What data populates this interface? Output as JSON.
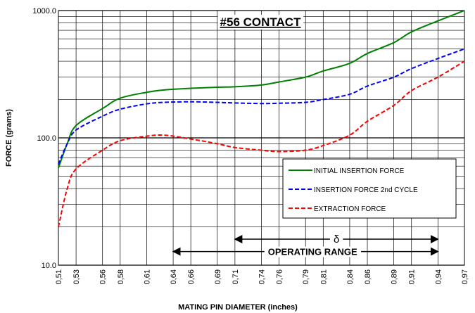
{
  "chart_data": {
    "type": "line",
    "title": "#56 CONTACT",
    "x_label": "MATING PIN  DIAMETER (inches)",
    "y_label": "FORCE (grams)",
    "log_y": true,
    "grid": true,
    "legend": "right",
    "xlim": [
      0.51,
      0.97
    ],
    "xticks": [
      {
        "value": 0.51,
        "label": "0,51"
      },
      {
        "value": 0.53,
        "label": "0,53"
      },
      {
        "value": 0.56,
        "label": "0,56"
      },
      {
        "value": 0.58,
        "label": "0,58"
      },
      {
        "value": 0.61,
        "label": "0,61"
      },
      {
        "value": 0.64,
        "label": "0,64"
      },
      {
        "value": 0.66,
        "label": "0,66"
      },
      {
        "value": 0.69,
        "label": "0,69"
      },
      {
        "value": 0.71,
        "label": "0,71"
      },
      {
        "value": 0.74,
        "label": "0,74"
      },
      {
        "value": 0.76,
        "label": "0,76"
      },
      {
        "value": 0.79,
        "label": "0,79"
      },
      {
        "value": 0.81,
        "label": "0,81"
      },
      {
        "value": 0.84,
        "label": "0,84"
      },
      {
        "value": 0.86,
        "label": "0,86"
      },
      {
        "value": 0.89,
        "label": "0,89"
      },
      {
        "value": 0.91,
        "label": "0,91"
      },
      {
        "value": 0.94,
        "label": "0,94"
      },
      {
        "value": 0.97,
        "label": "0,97"
      }
    ],
    "ylim": [
      10,
      1000
    ],
    "yticks": [
      {
        "value": 10,
        "label": "10.0"
      },
      {
        "value": 100,
        "label": "100.0"
      },
      {
        "value": 1000,
        "label": "1000.0"
      }
    ],
    "x": [
      0.51,
      0.52,
      0.53,
      0.56,
      0.58,
      0.61,
      0.63,
      0.66,
      0.69,
      0.71,
      0.74,
      0.76,
      0.79,
      0.81,
      0.84,
      0.86,
      0.89,
      0.91,
      0.94,
      0.97
    ],
    "series": [
      {
        "name": "INITIAL INSERTION FORCE",
        "color": "#008000",
        "dash": false,
        "values": [
          58,
          90,
          125,
          170,
          205,
          228,
          238,
          245,
          250,
          252,
          260,
          275,
          300,
          335,
          385,
          460,
          560,
          680,
          830,
          1000
        ]
      },
      {
        "name": "INSERTION FORCE 2nd CYCLE",
        "color": "#0000ff",
        "dash": true,
        "values": [
          62,
          90,
          115,
          148,
          168,
          185,
          190,
          192,
          190,
          188,
          186,
          187,
          190,
          200,
          220,
          255,
          300,
          350,
          420,
          500
        ]
      },
      {
        "name": "EXTRACTION FORCE",
        "color": "#ff0000",
        "dash": true,
        "values": [
          20,
          40,
          57,
          80,
          95,
          103,
          105,
          98,
          90,
          84,
          80,
          78,
          80,
          87,
          105,
          135,
          180,
          235,
          300,
          400
        ]
      }
    ],
    "annotations": [
      {
        "text": "δ",
        "x": [
          0.71,
          0.94
        ],
        "y": 16
      },
      {
        "text": "OPERATING RANGE",
        "x": [
          0.64,
          0.94
        ],
        "y": 12.8
      }
    ]
  }
}
